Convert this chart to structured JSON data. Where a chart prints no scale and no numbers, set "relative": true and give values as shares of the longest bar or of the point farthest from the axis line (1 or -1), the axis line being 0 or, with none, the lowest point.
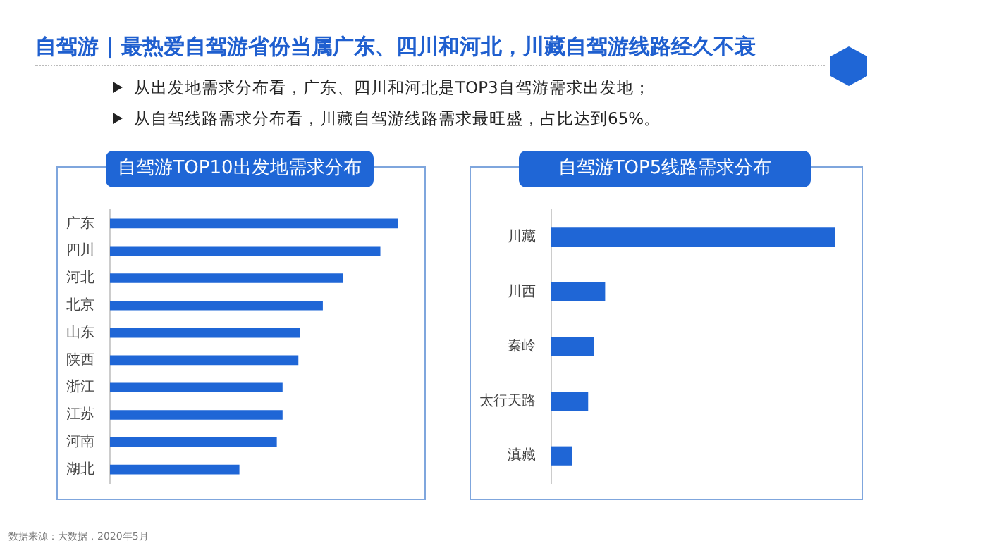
{
  "chart_data": [
    {
      "type": "other",
      "title": "自驾游 | 最热爱自驾游省份当属广东、四川和河北，川藏自驾游线路经久不衰",
      "annotations": [
        "从出发地需求分布看，广东、四川和河北是TOP3自驾游需求出发地；",
        "从自驾线路需求分布看，川藏自驾游线路需求最旺盛，占比达到65%。",
        "数据来源：大数据，2020年5月"
      ]
    },
    {
      "type": "bar",
      "orientation": "horizontal",
      "relative": true,
      "title": "自驾游TOP10出发地需求分布",
      "categories": [
        "广东",
        "四川",
        "河北",
        "北京",
        "山东",
        "陕西",
        "浙江",
        "江苏",
        "河南",
        "湖北"
      ],
      "values": [
        1,
        0.94,
        0.81,
        0.74,
        0.66,
        0.655,
        0.6,
        0.6,
        0.58,
        0.45
      ],
      "color": "#1f66d6"
    },
    {
      "type": "bar",
      "orientation": "horizontal",
      "relative": true,
      "title": "自驾游TOP5线路需求分布",
      "categories": [
        "川藏",
        "川西",
        "秦岭",
        "太行天路",
        "滇藏"
      ],
      "values": [
        1,
        0.19,
        0.15,
        0.13,
        0.073
      ],
      "color": "#1f66d6"
    }
  ]
}
